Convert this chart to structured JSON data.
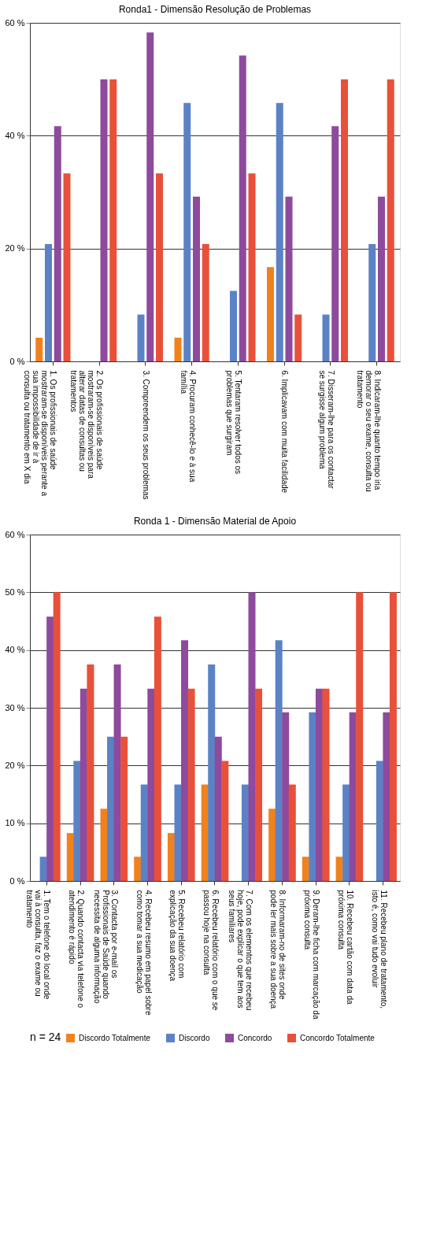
{
  "chart_data": [
    {
      "type": "bar",
      "title": "Ronda1 - Dimensão Resolução de Problemas",
      "categories": [
        "1. Os profissionais de saúde mostraram-se disponíveis perante a sua impossibilidade de ir à consulta ou tratamento em X dia",
        "2. Os profissionais de saúde mostraram-se disponíveis para alterar datas de consultas ou tratamentos",
        "3. Compreendem os seus problemas",
        "4. Procuram conhecê-lo e à sua família",
        "5. Tentaram resolver todos os problemas que surgiram",
        "6. Implicavam com muita facilidade",
        "7. Disseram-lhe para os contactar se surgisse algum problema",
        "8. Indicaram-lhe quanto tempo iria demorar o seu exame, consulta ou tratamento"
      ],
      "series": [
        {
          "color": "#f0821e",
          "values": [
            4.2,
            0,
            0,
            4.2,
            0,
            16.7,
            0,
            0
          ]
        },
        {
          "color": "#5b82c5",
          "values": [
            20.8,
            0,
            8.3,
            45.8,
            12.5,
            45.8,
            8.3,
            20.8
          ]
        },
        {
          "color": "#8e4a9c",
          "values": [
            41.7,
            50,
            58.3,
            29.2,
            54.2,
            29.2,
            41.7,
            29.2
          ]
        },
        {
          "color": "#e8503a",
          "values": [
            33.3,
            50,
            33.3,
            20.8,
            33.3,
            8.3,
            50,
            50
          ]
        }
      ],
      "ylim": [
        0,
        60
      ],
      "yticks": [
        {
          "value": 0,
          "label": "0 %"
        },
        {
          "value": 20,
          "label": "20 %"
        },
        {
          "value": 40,
          "label": "40 %"
        },
        {
          "value": 60,
          "label": "60 %"
        }
      ],
      "grid": "y",
      "legend": false
    },
    {
      "type": "bar",
      "title": "Ronda 1 - Dimensão Material de Apoio",
      "categories": [
        "1. Tem o telefone do local onde vai à consulta, faz o exame ou tratamento",
        "2. Quando contacta via telefone o atendimento é rápido",
        "3. Contacta por e-mail os Profissionais de Saúde quando necessita de alguma informação",
        "4. Recebeu resumo em papel sobre como tomar a sua medicação",
        "5. Recebeu relatório com explicação da sua doença",
        "6. Recebeu relatório com o que se passou hoje na consulta",
        "7. Com os elementos que recebeu hoje, pode explicar o que tem aos seus familiares",
        "8. Informaram-no de sites onde pode ler mais sobre a sua doença",
        "9. Deram-lhe ficha com marcação da próxima consulta",
        "10. Recebeu cartão com data da próxima consulta",
        "11. Recebeu plano de tratamento, isto é, como vai tudo evoluir"
      ],
      "series": [
        {
          "name": "Discordo Totalmente",
          "color": "#f0821e",
          "values": [
            0,
            8.3,
            12.5,
            4.2,
            8.3,
            16.7,
            0,
            12.5,
            4.2,
            4.2,
            0
          ]
        },
        {
          "name": "Discordo",
          "color": "#5b82c5",
          "values": [
            4.2,
            20.8,
            25,
            16.7,
            16.7,
            37.5,
            16.7,
            41.7,
            29.2,
            16.7,
            20.8
          ]
        },
        {
          "name": "Concordo",
          "color": "#8e4a9c",
          "values": [
            45.8,
            33.3,
            37.5,
            33.3,
            41.7,
            25,
            50,
            29.2,
            33.3,
            29.2,
            29.2
          ]
        },
        {
          "name": "Concordo Totalmente",
          "color": "#e8503a",
          "values": [
            50,
            37.5,
            25,
            45.8,
            33.3,
            20.8,
            33.3,
            16.7,
            33.3,
            50,
            50
          ]
        }
      ],
      "ylim": [
        0,
        60
      ],
      "yticks": [
        {
          "value": 0,
          "label": "0 %"
        },
        {
          "value": 10,
          "label": "10 %"
        },
        {
          "value": 20,
          "label": "20 %"
        },
        {
          "value": 30,
          "label": "30 %"
        },
        {
          "value": 40,
          "label": "40 %"
        },
        {
          "value": 50,
          "label": "50 %"
        },
        {
          "value": 60,
          "label": "60 %"
        }
      ],
      "grid": "y",
      "legend": "bottom",
      "annotations": [
        "n = 24"
      ]
    }
  ]
}
